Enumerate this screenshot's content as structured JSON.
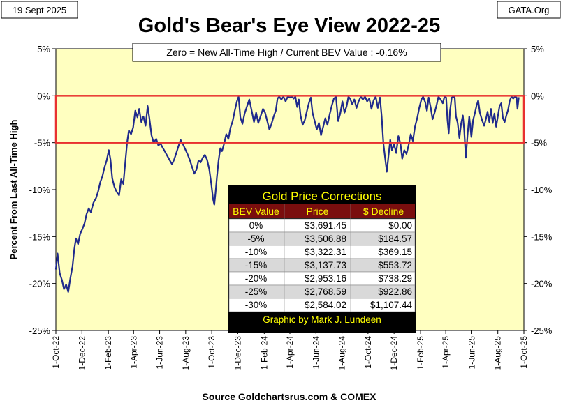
{
  "header": {
    "date_label": "19 Sept 2025",
    "source_label": "GATA.Org",
    "title": "Gold's Bear's Eye View 2022-25",
    "subtitle": "Zero = New All-Time High / Current  BEV Value : -0.16%",
    "footer": "Source Goldchartsrus.com & COMEX"
  },
  "chart_data": {
    "type": "line",
    "title": "Gold's Bear's Eye View 2022-25",
    "subtitle": "Zero = New All-Time High / Current  BEV Value : -0.16%",
    "ylabel": "Percent  From  Last  All-Time  High",
    "xlabel": "",
    "ylim": [
      -25,
      5
    ],
    "xlim": [
      "2022-10-01",
      "2025-10-01"
    ],
    "grid": false,
    "y_ticks": [
      5,
      0,
      -5,
      -10,
      -15,
      -20,
      -25
    ],
    "y_tick_labels": [
      "5%",
      "0%",
      "-5%",
      "-10%",
      "-15%",
      "-20%",
      "-25%"
    ],
    "x_ticks": [
      "2022-10-01",
      "2022-12-01",
      "2023-02-01",
      "2023-04-01",
      "2023-06-01",
      "2023-08-01",
      "2023-10-01",
      "2023-12-01",
      "2024-02-01",
      "2024-04-01",
      "2024-06-01",
      "2024-08-01",
      "2024-10-01",
      "2024-12-01",
      "2025-02-01",
      "2025-04-01",
      "2025-06-01",
      "2025-08-01",
      "2025-10-01"
    ],
    "x_tick_labels": [
      "1-Oct-22",
      "1-Dec-22",
      "1-Feb-23",
      "1-Apr-23",
      "1-Jun-23",
      "1-Aug-23",
      "1-Oct-23",
      "1-Dec-23",
      "1-Feb-24",
      "1-Apr-24",
      "1-Jun-24",
      "1-Aug-24",
      "1-Oct-24",
      "1-Dec-24",
      "1-Feb-25",
      "1-Apr-25",
      "1-Jun-25",
      "1-Aug-25",
      "1-Oct-25"
    ],
    "band": {
      "from": 0,
      "to": -5,
      "color": "#e8312f"
    },
    "series": [
      {
        "name": "",
        "color": "#1f2a8c",
        "points": [
          [
            "2022-10-01",
            -18.5
          ],
          [
            "2022-10-05",
            -16.8
          ],
          [
            "2022-10-10",
            -18.9
          ],
          [
            "2022-10-15",
            -19.6
          ],
          [
            "2022-10-20",
            -20.6
          ],
          [
            "2022-10-25",
            -20.1
          ],
          [
            "2022-10-30",
            -20.9
          ],
          [
            "2022-11-04",
            -19.4
          ],
          [
            "2022-11-09",
            -18.2
          ],
          [
            "2022-11-13",
            -16.4
          ],
          [
            "2022-11-17",
            -15.2
          ],
          [
            "2022-11-22",
            -15.8
          ],
          [
            "2022-11-27",
            -14.7
          ],
          [
            "2022-12-02",
            -14.2
          ],
          [
            "2022-12-07",
            -13.6
          ],
          [
            "2022-12-12",
            -12.6
          ],
          [
            "2022-12-17",
            -12.0
          ],
          [
            "2022-12-22",
            -12.4
          ],
          [
            "2022-12-28",
            -11.4
          ],
          [
            "2023-01-03",
            -10.9
          ],
          [
            "2023-01-08",
            -10.2
          ],
          [
            "2023-01-13",
            -9.2
          ],
          [
            "2023-01-18",
            -8.6
          ],
          [
            "2023-01-23",
            -7.6
          ],
          [
            "2023-01-28",
            -6.9
          ],
          [
            "2023-02-02",
            -5.8
          ],
          [
            "2023-02-06",
            -6.8
          ],
          [
            "2023-02-10",
            -8.8
          ],
          [
            "2023-02-15",
            -9.7
          ],
          [
            "2023-02-20",
            -10.2
          ],
          [
            "2023-02-26",
            -10.6
          ],
          [
            "2023-03-03",
            -8.9
          ],
          [
            "2023-03-08",
            -9.4
          ],
          [
            "2023-03-13",
            -6.9
          ],
          [
            "2023-03-17",
            -4.9
          ],
          [
            "2023-03-21",
            -3.7
          ],
          [
            "2023-03-26",
            -4.1
          ],
          [
            "2023-03-31",
            -3.4
          ],
          [
            "2023-04-05",
            -1.6
          ],
          [
            "2023-04-10",
            -2.3
          ],
          [
            "2023-04-14",
            -1.4
          ],
          [
            "2023-04-19",
            -2.8
          ],
          [
            "2023-04-24",
            -2.2
          ],
          [
            "2023-04-29",
            -3.2
          ],
          [
            "2023-05-04",
            -1.1
          ],
          [
            "2023-05-08",
            -2.4
          ],
          [
            "2023-05-13",
            -4.2
          ],
          [
            "2023-05-18",
            -5.0
          ],
          [
            "2023-05-24",
            -4.6
          ],
          [
            "2023-05-29",
            -5.3
          ],
          [
            "2023-06-03",
            -5.1
          ],
          [
            "2023-06-09",
            -5.6
          ],
          [
            "2023-06-14",
            -6.0
          ],
          [
            "2023-06-20",
            -6.5
          ],
          [
            "2023-06-25",
            -6.9
          ],
          [
            "2023-06-30",
            -7.3
          ],
          [
            "2023-07-05",
            -6.8
          ],
          [
            "2023-07-10",
            -6.1
          ],
          [
            "2023-07-15",
            -5.4
          ],
          [
            "2023-07-20",
            -4.7
          ],
          [
            "2023-07-26",
            -5.2
          ],
          [
            "2023-07-31",
            -5.7
          ],
          [
            "2023-08-06",
            -6.3
          ],
          [
            "2023-08-11",
            -6.9
          ],
          [
            "2023-08-16",
            -7.6
          ],
          [
            "2023-08-21",
            -8.3
          ],
          [
            "2023-08-26",
            -7.9
          ],
          [
            "2023-08-31",
            -6.9
          ],
          [
            "2023-09-05",
            -7.1
          ],
          [
            "2023-09-10",
            -6.6
          ],
          [
            "2023-09-15",
            -6.3
          ],
          [
            "2023-09-20",
            -6.8
          ],
          [
            "2023-09-25",
            -7.8
          ],
          [
            "2023-09-30",
            -9.4
          ],
          [
            "2023-10-04",
            -11.0
          ],
          [
            "2023-10-07",
            -11.6
          ],
          [
            "2023-10-10",
            -10.3
          ],
          [
            "2023-10-13",
            -8.7
          ],
          [
            "2023-10-17",
            -6.9
          ],
          [
            "2023-10-21",
            -5.6
          ],
          [
            "2023-10-25",
            -5.9
          ],
          [
            "2023-10-30",
            -5.1
          ],
          [
            "2023-11-04",
            -4.1
          ],
          [
            "2023-11-09",
            -4.6
          ],
          [
            "2023-11-14",
            -3.4
          ],
          [
            "2023-11-19",
            -2.7
          ],
          [
            "2023-11-24",
            -1.6
          ],
          [
            "2023-11-29",
            -0.6
          ],
          [
            "2023-12-03",
            -0.1
          ],
          [
            "2023-12-07",
            -2.3
          ],
          [
            "2023-12-12",
            -3.0
          ],
          [
            "2023-12-17",
            -1.9
          ],
          [
            "2023-12-22",
            -1.2
          ],
          [
            "2023-12-28",
            -0.4
          ],
          [
            "2024-01-03",
            -1.7
          ],
          [
            "2024-01-08",
            -2.8
          ],
          [
            "2024-01-13",
            -1.8
          ],
          [
            "2024-01-18",
            -2.9
          ],
          [
            "2024-01-24",
            -2.1
          ],
          [
            "2024-01-29",
            -1.4
          ],
          [
            "2024-02-03",
            -1.8
          ],
          [
            "2024-02-08",
            -2.7
          ],
          [
            "2024-02-13",
            -3.6
          ],
          [
            "2024-02-18",
            -3.0
          ],
          [
            "2024-02-23",
            -2.2
          ],
          [
            "2024-02-28",
            -1.6
          ],
          [
            "2024-03-03",
            -0.3
          ],
          [
            "2024-03-07",
            -0.1
          ],
          [
            "2024-03-12",
            -0.4
          ],
          [
            "2024-03-17",
            -0.1
          ],
          [
            "2024-03-22",
            -0.6
          ],
          [
            "2024-03-27",
            -0.1
          ],
          [
            "2024-04-01",
            -0.2
          ],
          [
            "2024-04-06",
            -0.1
          ],
          [
            "2024-04-10",
            -0.3
          ],
          [
            "2024-04-14",
            -0.1
          ],
          [
            "2024-04-18",
            -1.2
          ],
          [
            "2024-04-22",
            -0.4
          ],
          [
            "2024-04-26",
            -2.1
          ],
          [
            "2024-05-01",
            -3.1
          ],
          [
            "2024-05-06",
            -2.6
          ],
          [
            "2024-05-11",
            -1.6
          ],
          [
            "2024-05-16",
            -0.7
          ],
          [
            "2024-05-20",
            -0.2
          ],
          [
            "2024-05-24",
            -1.8
          ],
          [
            "2024-05-29",
            -2.7
          ],
          [
            "2024-06-03",
            -3.6
          ],
          [
            "2024-06-08",
            -2.9
          ],
          [
            "2024-06-13",
            -4.2
          ],
          [
            "2024-06-18",
            -3.3
          ],
          [
            "2024-06-23",
            -2.4
          ],
          [
            "2024-06-28",
            -3.1
          ],
          [
            "2024-07-03",
            -2.0
          ],
          [
            "2024-07-08",
            -1.1
          ],
          [
            "2024-07-13",
            -0.3
          ],
          [
            "2024-07-18",
            -0.1
          ],
          [
            "2024-07-23",
            -2.7
          ],
          [
            "2024-07-28",
            -1.9
          ],
          [
            "2024-08-02",
            -0.6
          ],
          [
            "2024-08-07",
            -1.8
          ],
          [
            "2024-08-12",
            -1.1
          ],
          [
            "2024-08-16",
            -0.1
          ],
          [
            "2024-08-20",
            -0.3
          ],
          [
            "2024-08-25",
            -0.9
          ],
          [
            "2024-08-30",
            -0.4
          ],
          [
            "2024-09-04",
            -1.3
          ],
          [
            "2024-09-09",
            -0.6
          ],
          [
            "2024-09-14",
            -0.1
          ],
          [
            "2024-09-19",
            -0.4
          ],
          [
            "2024-09-24",
            -0.1
          ],
          [
            "2024-09-29",
            -0.6
          ],
          [
            "2024-10-04",
            -0.3
          ],
          [
            "2024-10-09",
            -1.4
          ],
          [
            "2024-10-14",
            -0.5
          ],
          [
            "2024-10-19",
            -0.1
          ],
          [
            "2024-10-24",
            -1.3
          ],
          [
            "2024-10-29",
            -0.2
          ],
          [
            "2024-11-02",
            -2.2
          ],
          [
            "2024-11-06",
            -5.1
          ],
          [
            "2024-11-10",
            -6.6
          ],
          [
            "2024-11-14",
            -8.1
          ],
          [
            "2024-11-18",
            -6.4
          ],
          [
            "2024-11-22",
            -4.7
          ],
          [
            "2024-11-26",
            -5.8
          ],
          [
            "2024-12-01",
            -5.2
          ],
          [
            "2024-12-06",
            -6.1
          ],
          [
            "2024-12-11",
            -4.3
          ],
          [
            "2024-12-16",
            -5.1
          ],
          [
            "2024-12-20",
            -6.7
          ],
          [
            "2024-12-25",
            -5.8
          ],
          [
            "2024-12-30",
            -6.2
          ],
          [
            "2025-01-04",
            -5.3
          ],
          [
            "2025-01-09",
            -4.1
          ],
          [
            "2025-01-14",
            -4.8
          ],
          [
            "2025-01-19",
            -3.3
          ],
          [
            "2025-01-24",
            -2.4
          ],
          [
            "2025-01-29",
            -1.3
          ],
          [
            "2025-02-03",
            -0.4
          ],
          [
            "2025-02-07",
            -0.1
          ],
          [
            "2025-02-12",
            -0.7
          ],
          [
            "2025-02-16",
            -1.6
          ],
          [
            "2025-02-20",
            -0.2
          ],
          [
            "2025-02-25",
            -1.3
          ],
          [
            "2025-03-01",
            -2.5
          ],
          [
            "2025-03-06",
            -1.8
          ],
          [
            "2025-03-11",
            -0.9
          ],
          [
            "2025-03-15",
            -0.1
          ],
          [
            "2025-03-20",
            -0.4
          ],
          [
            "2025-03-25",
            -0.8
          ],
          [
            "2025-03-29",
            -0.1
          ],
          [
            "2025-04-02",
            -0.2
          ],
          [
            "2025-04-05",
            -2.6
          ],
          [
            "2025-04-08",
            -4.0
          ],
          [
            "2025-04-11",
            -1.6
          ],
          [
            "2025-04-15",
            -0.2
          ],
          [
            "2025-04-19",
            -0.1
          ],
          [
            "2025-04-22",
            -0.2
          ],
          [
            "2025-04-25",
            -2.2
          ],
          [
            "2025-04-29",
            -2.9
          ],
          [
            "2025-05-03",
            -4.5
          ],
          [
            "2025-05-07",
            -3.0
          ],
          [
            "2025-05-11",
            -2.1
          ],
          [
            "2025-05-14",
            -3.5
          ],
          [
            "2025-05-18",
            -6.6
          ],
          [
            "2025-05-22",
            -4.2
          ],
          [
            "2025-05-26",
            -2.2
          ],
          [
            "2025-05-31",
            -4.4
          ],
          [
            "2025-06-04",
            -2.6
          ],
          [
            "2025-06-08",
            -1.9
          ],
          [
            "2025-06-12",
            -1.1
          ],
          [
            "2025-06-16",
            -0.5
          ],
          [
            "2025-06-20",
            -1.8
          ],
          [
            "2025-06-25",
            -2.6
          ],
          [
            "2025-06-30",
            -3.2
          ],
          [
            "2025-07-04",
            -2.5
          ],
          [
            "2025-07-08",
            -1.7
          ],
          [
            "2025-07-12",
            -2.8
          ],
          [
            "2025-07-16",
            -1.4
          ],
          [
            "2025-07-20",
            -2.9
          ],
          [
            "2025-07-24",
            -1.9
          ],
          [
            "2025-07-28",
            -3.3
          ],
          [
            "2025-08-01",
            -2.2
          ],
          [
            "2025-08-05",
            -1.1
          ],
          [
            "2025-08-09",
            -0.8
          ],
          [
            "2025-08-13",
            -2.4
          ],
          [
            "2025-08-17",
            -2.8
          ],
          [
            "2025-08-21",
            -2.1
          ],
          [
            "2025-08-25",
            -1.5
          ],
          [
            "2025-08-29",
            -0.5
          ],
          [
            "2025-09-02",
            -0.1
          ],
          [
            "2025-09-06",
            -0.3
          ],
          [
            "2025-09-10",
            -0.1
          ],
          [
            "2025-09-14",
            -0.2
          ],
          [
            "2025-09-16",
            -1.4
          ],
          [
            "2025-09-19",
            -0.16
          ]
        ]
      }
    ],
    "table": {
      "title": "Gold Price Corrections",
      "columns": [
        "BEV Value",
        "Price",
        "$ Decline"
      ],
      "rows": [
        [
          "0%",
          "$3,691.45",
          "$0.00"
        ],
        [
          "-5%",
          "$3,506.88",
          "$184.57"
        ],
        [
          "-10%",
          "$3,322.31",
          "$369.15"
        ],
        [
          "-15%",
          "$3,137.73",
          "$553.72"
        ],
        [
          "-20%",
          "$2,953.16",
          "$738.29"
        ],
        [
          "-25%",
          "$2,768.59",
          "$922.86"
        ],
        [
          "-30%",
          "$2,584.02",
          "$1,107.44"
        ]
      ],
      "footer": "Graphic by Mark J. Lundeen"
    },
    "colors": {
      "plot_background": "#ffffc0",
      "table_header_band": "#000000",
      "table_header_text": "#ffff00",
      "table_column_band": "#7a0e0e",
      "table_row_light": "#ffffff",
      "table_row_shade": "#d9d9d9"
    }
  }
}
